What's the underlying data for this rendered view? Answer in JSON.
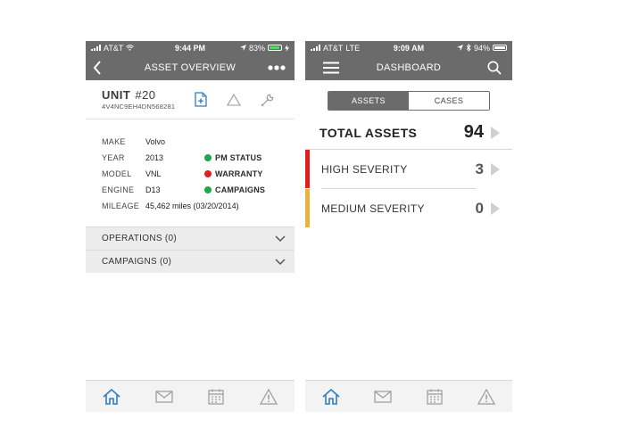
{
  "colors": {
    "header_bg": "#6b6b6b",
    "accent_blue": "#2d7fc1",
    "status_green": "#1fa64a",
    "status_red": "#e02020",
    "severity_high": "#e02020",
    "severity_medium": "#e8b33a",
    "battery_green": "#4cd964"
  },
  "left_screen": {
    "status": {
      "carrier": "AT&T",
      "time": "9:44 PM",
      "battery": "83%"
    },
    "nav": {
      "back_icon": "chevron-left-icon",
      "title": "ASSET OVERVIEW",
      "more_icon": "more-icon"
    },
    "unit": {
      "label": "UNIT",
      "number": "#20",
      "vin": "4V4NC9EH4DN568281",
      "actions": [
        "add-document-icon",
        "warning-icon",
        "wrench-icon"
      ]
    },
    "specs": [
      {
        "label": "MAKE",
        "value": "Volvo"
      },
      {
        "label": "YEAR",
        "value": "2013",
        "status": "PM STATUS",
        "status_color": "#1fa64a"
      },
      {
        "label": "MODEL",
        "value": "VNL",
        "status": "WARRANTY",
        "status_color": "#e02020"
      },
      {
        "label": "ENGINE",
        "value": "D13",
        "status": "CAMPAIGNS",
        "status_color": "#1fa64a"
      }
    ],
    "mileage": {
      "label": "MILEAGE",
      "value": "45,462 miles (03/20/2014)"
    },
    "accordion": [
      {
        "label": "OPERATIONS (0)"
      },
      {
        "label": "CAMPAIGNS (0)"
      }
    ],
    "tabbar": [
      "home-icon",
      "mail-icon",
      "calendar-icon",
      "alert-icon"
    ]
  },
  "right_screen": {
    "status": {
      "carrier": "AT&T",
      "network": "LTE",
      "time": "9:09 AM",
      "battery": "94%"
    },
    "nav": {
      "menu_icon": "hamburger-menu-icon",
      "title": "DASHBOARD",
      "search_icon": "search-icon"
    },
    "segments": [
      "ASSETS",
      "CASES"
    ],
    "active_segment": "ASSETS",
    "total": {
      "label": "TOTAL ASSETS",
      "value": "94"
    },
    "severities": [
      {
        "label": "HIGH SEVERITY",
        "value": "3",
        "color": "#e02020"
      },
      {
        "label": "MEDIUM SEVERITY",
        "value": "0",
        "color": "#e8b33a"
      }
    ],
    "tabbar": [
      "home-icon",
      "mail-icon",
      "calendar-icon",
      "alert-icon"
    ]
  }
}
